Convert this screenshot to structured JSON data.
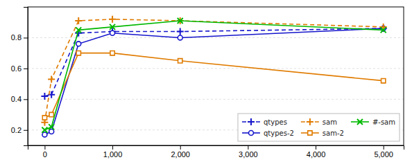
{
  "chart_data": {
    "type": "line",
    "x": [
      0,
      100,
      500,
      1000,
      2000,
      5000
    ],
    "series": [
      {
        "name": "qtypes",
        "color": "#1515cc",
        "marker": "plus",
        "line_style": "dashed",
        "values": [
          0.42,
          0.43,
          0.83,
          0.84,
          0.84,
          0.86
        ]
      },
      {
        "name": "qtypes-2",
        "color": "#1515cc",
        "marker": "circle",
        "line_style": "solid",
        "values": [
          0.17,
          0.19,
          0.76,
          0.83,
          0.8,
          0.86
        ]
      },
      {
        "name": "sam",
        "color": "#e07b00",
        "marker": "plus",
        "line_style": "dashed",
        "values": [
          0.25,
          0.53,
          0.91,
          0.92,
          0.91,
          0.87
        ]
      },
      {
        "name": "sam-2",
        "color": "#e07b00",
        "marker": "square",
        "line_style": "solid",
        "values": [
          0.28,
          0.3,
          0.7,
          0.7,
          0.65,
          0.52
        ]
      },
      {
        "name": "#-sam",
        "color": "#00b800",
        "marker": "x",
        "line_style": "solid",
        "values": [
          0.2,
          0.22,
          0.85,
          0.87,
          0.91,
          0.85
        ]
      }
    ],
    "xlim": [
      -250,
      5300
    ],
    "ylim": [
      0.1,
      1.0
    ],
    "xticks": [
      0,
      {
        "value": 1000,
        "label": "1,000"
      },
      {
        "value": 2000,
        "label": "2,000"
      },
      {
        "value": 3000,
        "label": "3,000"
      },
      {
        "value": 4000,
        "label": "4,000"
      },
      {
        "value": 5000,
        "label": "5,000"
      }
    ],
    "yticks": [
      0.2,
      0.4,
      0.6,
      0.8
    ],
    "grid": "y",
    "legend": "lower right"
  }
}
